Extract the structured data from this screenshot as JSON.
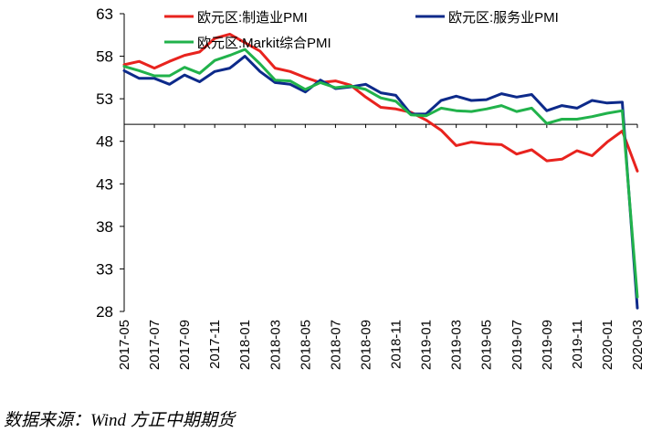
{
  "chart_data": {
    "type": "line",
    "title": "",
    "xlabel": "",
    "ylabel": "",
    "ylim": [
      28,
      63
    ],
    "y_ticks": [
      63,
      58,
      53,
      48,
      43,
      38,
      33,
      28
    ],
    "reference_line": 50,
    "x_tick_labels": [
      "2017-05",
      "2017-07",
      "2017-09",
      "2017-11",
      "2018-01",
      "2018-03",
      "2018-05",
      "2018-07",
      "2018-09",
      "2018-11",
      "2019-01",
      "2019-03",
      "2019-05",
      "2019-07",
      "2019-09",
      "2019-11",
      "2020-01",
      "2020-03"
    ],
    "x": [
      "2017-05",
      "2017-06",
      "2017-07",
      "2017-08",
      "2017-09",
      "2017-10",
      "2017-11",
      "2017-12",
      "2018-01",
      "2018-02",
      "2018-03",
      "2018-04",
      "2018-05",
      "2018-06",
      "2018-07",
      "2018-08",
      "2018-09",
      "2018-10",
      "2018-11",
      "2018-12",
      "2019-01",
      "2019-02",
      "2019-03",
      "2019-04",
      "2019-05",
      "2019-06",
      "2019-07",
      "2019-08",
      "2019-09",
      "2019-10",
      "2019-11",
      "2019-12",
      "2020-01",
      "2020-02",
      "2020-03"
    ],
    "series": [
      {
        "name": "欧元区:制造业PMI",
        "color": "#e8231e",
        "values": [
          57.0,
          57.4,
          56.6,
          57.4,
          58.1,
          58.5,
          60.1,
          60.6,
          59.6,
          58.6,
          56.6,
          56.2,
          55.5,
          54.9,
          55.1,
          54.6,
          53.2,
          52.0,
          51.8,
          51.4,
          50.5,
          49.3,
          47.5,
          47.9,
          47.7,
          47.6,
          46.5,
          47.0,
          45.7,
          45.9,
          46.9,
          46.3,
          47.9,
          49.2,
          44.5
        ]
      },
      {
        "name": "欧元区:服务业PMI",
        "color": "#0d2a8a",
        "values": [
          56.3,
          55.4,
          55.4,
          54.7,
          55.8,
          55.0,
          56.2,
          56.6,
          58.0,
          56.2,
          54.9,
          54.7,
          53.8,
          55.2,
          54.2,
          54.4,
          54.7,
          53.7,
          53.4,
          51.2,
          51.2,
          52.8,
          53.3,
          52.8,
          52.9,
          53.6,
          53.2,
          53.5,
          51.6,
          52.2,
          51.9,
          52.8,
          52.5,
          52.6,
          28.4
        ]
      },
      {
        "name": "欧元区:Markit综合PMI",
        "color": "#21b24b",
        "values": [
          56.8,
          56.3,
          55.7,
          55.7,
          56.7,
          56.0,
          57.5,
          58.1,
          58.8,
          57.1,
          55.2,
          55.1,
          54.1,
          54.9,
          54.3,
          54.5,
          54.1,
          53.1,
          52.7,
          51.1,
          51.0,
          51.9,
          51.6,
          51.5,
          51.8,
          52.2,
          51.5,
          51.9,
          50.1,
          50.6,
          50.6,
          50.9,
          51.3,
          51.6,
          29.7
        ]
      }
    ],
    "legend_position": "top"
  },
  "source": "数据来源：Wind  方正中期期货"
}
